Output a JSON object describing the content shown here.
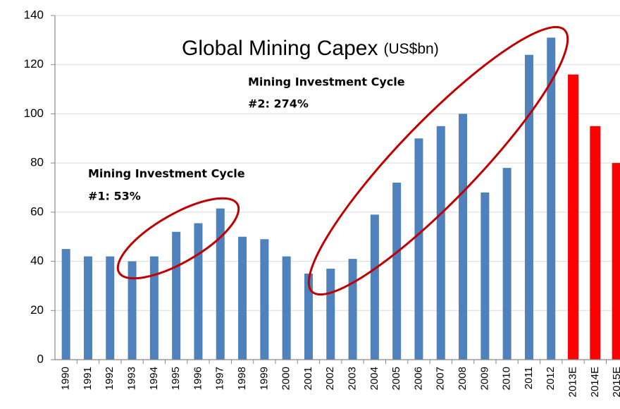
{
  "chart_data": {
    "type": "bar",
    "title": "Global Mining Capex",
    "subtitle": "(US$bn)",
    "annotations": [
      "Mining Investment Cycle",
      "#1: 53%",
      "Mining Investment Cycle",
      "#2: 274%"
    ],
    "categories": [
      "1990",
      "1991",
      "1992",
      "1993",
      "1994",
      "1995",
      "1996",
      "1997",
      "1998",
      "1999",
      "2000",
      "2001",
      "2002",
      "2003",
      "2004",
      "2005",
      "2006",
      "2007",
      "2008",
      "2009",
      "2010",
      "2011",
      "2012",
      "2013E",
      "2014E",
      "2015E"
    ],
    "values": [
      45,
      42,
      42,
      40,
      42,
      52,
      55.5,
      61.5,
      50,
      49,
      42,
      35,
      37,
      41,
      59,
      72,
      90,
      95,
      100,
      68,
      78,
      124,
      131,
      116,
      95,
      80
    ],
    "colors": [
      "#4f81bd",
      "#4f81bd",
      "#4f81bd",
      "#4f81bd",
      "#4f81bd",
      "#4f81bd",
      "#4f81bd",
      "#4f81bd",
      "#4f81bd",
      "#4f81bd",
      "#4f81bd",
      "#4f81bd",
      "#4f81bd",
      "#4f81bd",
      "#4f81bd",
      "#4f81bd",
      "#4f81bd",
      "#4f81bd",
      "#4f81bd",
      "#4f81bd",
      "#4f81bd",
      "#4f81bd",
      "#4f81bd",
      "#ff0000",
      "#ff0000",
      "#ff0000"
    ],
    "ylim": [
      0,
      140
    ],
    "yticks": [
      0,
      20,
      40,
      60,
      80,
      100,
      120,
      140
    ],
    "grid": true
  }
}
